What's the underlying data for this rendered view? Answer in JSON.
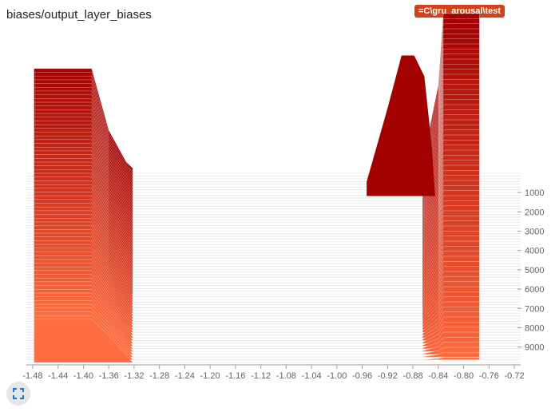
{
  "card": {
    "title": "biases/output_layer_biases",
    "run_badge": "=C\\gru_arousal\\test"
  },
  "icons": {
    "expand": "fullscreen-expand-icon"
  },
  "colors": {
    "oldest": "#a30000",
    "newest": "#ff6e40",
    "baseline": "#dcdcdc",
    "axis": "#9e9e9e"
  },
  "chart_data": {
    "type": "histogram-offset",
    "title": "biases/output_layer_biases",
    "xlabel": "",
    "ylabel": "",
    "x_ticks": [
      "-1.48",
      "-1.44",
      "-1.40",
      "-1.36",
      "-1.32",
      "-1.28",
      "-1.24",
      "-1.20",
      "-1.16",
      "-1.12",
      "-1.08",
      "-1.04",
      "-1.00",
      "-0.96",
      "-0.92",
      "-0.88",
      "-0.84",
      "-0.80",
      "-0.76",
      "-0.72"
    ],
    "y_ticks": [
      "1000",
      "2000",
      "3000",
      "4000",
      "5000",
      "6000",
      "7000",
      "8000",
      "9000"
    ],
    "xlim": [
      -1.49,
      -0.71
    ],
    "step_range": [
      0,
      9800
    ],
    "grid": false
  }
}
